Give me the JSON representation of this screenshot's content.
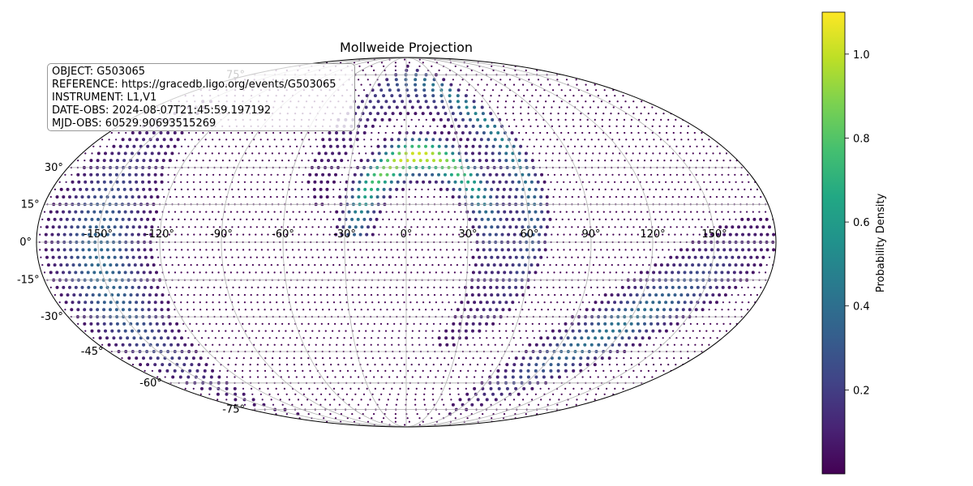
{
  "chart_data": {
    "type": "heatmap",
    "projection": "mollweide",
    "title": "Mollweide Projection",
    "lon_ticks": [
      "-150°",
      "-120°",
      "-90°",
      "-60°",
      "-30°",
      "0°",
      "30°",
      "60°",
      "90°",
      "120°",
      "150°"
    ],
    "lat_ticks": [
      "75°",
      "30°",
      "15°",
      "0°",
      "-15°",
      "-30°",
      "-45°",
      "-60°",
      "-75°"
    ],
    "grid": true,
    "colormap": "viridis",
    "colorbar": {
      "label": "Probability Density",
      "range": [
        0.0,
        1.1
      ],
      "ticks": [
        "0.2",
        "0.4",
        "0.6",
        "0.8",
        "1.0"
      ]
    },
    "info_lines": [
      "OBJECT: G503065",
      "REFERENCE: https://gracedb.ligo.org/events/G503065",
      "INSTRUMENT: L1,V1",
      "DATE-OBS: 2024-08-07T21:45:59.197192",
      "MJD-OBS: 60529.90693515269"
    ],
    "regions": [
      {
        "description": "peak arc",
        "lon_range": [
          -40,
          55
        ],
        "lat_range": [
          -10,
          45
        ],
        "peak_value": 1.1
      },
      {
        "description": "outer arc",
        "lon_range": [
          -30,
          65
        ],
        "lat_range": [
          -25,
          80
        ],
        "peak_value": 0.6
      },
      {
        "description": "left band",
        "lon_range": [
          -180,
          -120
        ],
        "lat_range": [
          -70,
          30
        ],
        "peak_value": 0.5
      },
      {
        "description": "lower right band",
        "lon_range": [
          75,
          180
        ],
        "lat_range": [
          -65,
          0
        ],
        "peak_value": 0.55
      }
    ]
  }
}
